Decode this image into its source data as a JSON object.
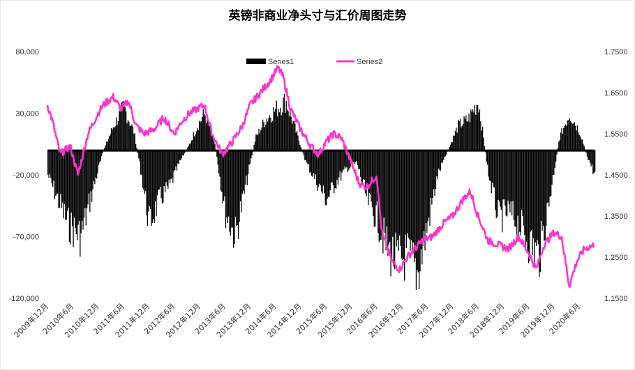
{
  "chart_data": {
    "type": "bar+line",
    "title": "英镑非商业净头寸与汇价周图走势",
    "y_left": {
      "ylim": [
        -120000,
        80000
      ],
      "ticks": [
        -120000,
        -70000,
        -20000,
        30000,
        80000
      ],
      "tick_labels": [
        "-120,000",
        "-70,000",
        "-20,000",
        "30,000",
        "80,000"
      ]
    },
    "y_right": {
      "ylim": [
        1.15,
        1.75
      ],
      "ticks": [
        1.15,
        1.25,
        1.35,
        1.45,
        1.55,
        1.65,
        1.75
      ],
      "tick_labels": [
        "1.1500",
        "1.2500",
        "1.3500",
        "1.4500",
        "1.5500",
        "1.6500",
        "1.7500"
      ]
    },
    "x_tick_labels": [
      "2009年12月",
      "2010年6月",
      "2010年12月",
      "2011年6月",
      "2011年12月",
      "2012年6月",
      "2012年12月",
      "2013年6月",
      "2013年12月",
      "2014年6月",
      "2014年12月",
      "2015年6月",
      "2015年12月",
      "2016年6月",
      "2016年12月",
      "2017年6月",
      "2017年12月",
      "2018年6月",
      "2018年12月",
      "2019年6月",
      "2019年12月",
      "2020年6月"
    ],
    "x_start": 2009.9,
    "x_end": 2020.7,
    "legend": {
      "position": "top",
      "entries": [
        "Series1",
        "Series2"
      ]
    },
    "series": [
      {
        "name": "Series1",
        "kind": "bar",
        "color": "#000000",
        "time": [
          2009.9,
          2010.1,
          2010.3,
          2010.55,
          2010.8,
          2011.0,
          2011.2,
          2011.4,
          2011.6,
          2011.75,
          2011.9,
          2012.1,
          2012.3,
          2012.5,
          2012.7,
          2012.85,
          2013.0,
          2013.2,
          2013.4,
          2013.6,
          2013.8,
          2014.0,
          2014.2,
          2014.45,
          2014.6,
          2014.8,
          2015.0,
          2015.2,
          2015.4,
          2015.6,
          2015.8,
          2016.0,
          2016.2,
          2016.4,
          2016.6,
          2016.8,
          2017.0,
          2017.2,
          2017.4,
          2017.6,
          2017.8,
          2018.0,
          2018.2,
          2018.4,
          2018.6,
          2018.8,
          2019.0,
          2019.2,
          2019.4,
          2019.6,
          2019.8,
          2020.0,
          2020.2,
          2020.4,
          2020.55,
          2020.7
        ],
        "values": [
          -20000,
          -40000,
          -60000,
          -70000,
          -30000,
          0,
          20000,
          35000,
          15000,
          -20000,
          -60000,
          -40000,
          -30000,
          -10000,
          5000,
          20000,
          30000,
          5000,
          -50000,
          -70000,
          -30000,
          10000,
          25000,
          35000,
          40000,
          15000,
          -10000,
          -25000,
          -40000,
          -25000,
          -15000,
          -10000,
          -40000,
          -55000,
          -80000,
          -90000,
          -85000,
          -100000,
          -60000,
          -20000,
          0,
          20000,
          25000,
          40000,
          -20000,
          -55000,
          -50000,
          -60000,
          -75000,
          -85000,
          -40000,
          10000,
          30000,
          15000,
          -5000,
          -20000
        ]
      },
      {
        "name": "Series2",
        "kind": "line",
        "color": "#ff33cc",
        "time": [
          2009.9,
          2010.0,
          2010.15,
          2010.35,
          2010.5,
          2010.7,
          2010.9,
          2011.0,
          2011.2,
          2011.35,
          2011.5,
          2011.65,
          2011.8,
          2012.0,
          2012.2,
          2012.4,
          2012.55,
          2012.7,
          2012.85,
          2013.0,
          2013.15,
          2013.35,
          2013.55,
          2013.75,
          2013.9,
          2014.1,
          2014.3,
          2014.45,
          2014.55,
          2014.7,
          2014.9,
          2015.1,
          2015.25,
          2015.4,
          2015.55,
          2015.7,
          2015.9,
          2016.05,
          2016.2,
          2016.4,
          2016.5,
          2016.7,
          2016.85,
          2017.0,
          2017.15,
          2017.3,
          2017.5,
          2017.7,
          2017.9,
          2018.1,
          2018.25,
          2018.4,
          2018.6,
          2018.8,
          2019.0,
          2019.2,
          2019.4,
          2019.55,
          2019.7,
          2019.9,
          2020.05,
          2020.2,
          2020.35,
          2020.5,
          2020.7
        ],
        "values": [
          1.62,
          1.58,
          1.5,
          1.52,
          1.45,
          1.55,
          1.6,
          1.62,
          1.64,
          1.61,
          1.63,
          1.57,
          1.55,
          1.56,
          1.59,
          1.55,
          1.58,
          1.6,
          1.61,
          1.62,
          1.55,
          1.5,
          1.53,
          1.57,
          1.62,
          1.65,
          1.68,
          1.71,
          1.69,
          1.61,
          1.56,
          1.52,
          1.5,
          1.53,
          1.55,
          1.54,
          1.48,
          1.43,
          1.42,
          1.45,
          1.31,
          1.24,
          1.22,
          1.25,
          1.27,
          1.29,
          1.3,
          1.33,
          1.35,
          1.39,
          1.41,
          1.35,
          1.29,
          1.28,
          1.27,
          1.3,
          1.26,
          1.22,
          1.28,
          1.31,
          1.3,
          1.18,
          1.24,
          1.27,
          1.28
        ]
      }
    ]
  }
}
